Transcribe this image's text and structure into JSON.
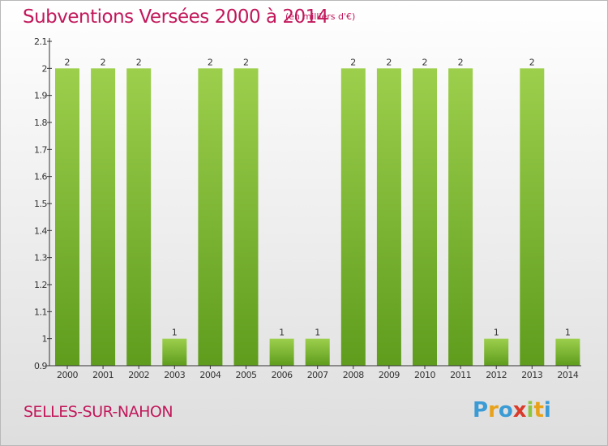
{
  "title": "Subventions Versées 2000 à 2014",
  "unit_note": "(en milliers d'€)",
  "commune": "SELLES-SUR-NAHON",
  "logo": {
    "text": "Proxiti",
    "letters": [
      {
        "ch": "P",
        "color": "#3a9bd5"
      },
      {
        "ch": "r",
        "color": "#e8a21a"
      },
      {
        "ch": "o",
        "color": "#3a9bd5"
      },
      {
        "ch": "x",
        "color": "#d93a2a"
      },
      {
        "ch": "i",
        "color": "#8cc63f"
      },
      {
        "ch": "t",
        "color": "#e8a21a"
      },
      {
        "ch": "i",
        "color": "#3a9bd5"
      }
    ]
  },
  "colors": {
    "accent": "#c2185b",
    "bar_top": "#9ccf4c",
    "bar_bottom": "#5f9c1d",
    "axis": "#333333"
  },
  "chart_data": {
    "type": "bar",
    "categories": [
      "2000",
      "2001",
      "2002",
      "2003",
      "2004",
      "2005",
      "2006",
      "2007",
      "2008",
      "2009",
      "2010",
      "2011",
      "2012",
      "2013",
      "2014"
    ],
    "values": [
      2,
      2,
      2,
      1,
      2,
      2,
      1,
      1,
      2,
      2,
      2,
      2,
      1,
      2,
      1
    ],
    "data_labels": [
      "2",
      "2",
      "2",
      "1",
      "2",
      "2",
      "1",
      "1",
      "2",
      "2",
      "2",
      "2",
      "1",
      "2",
      "1"
    ],
    "ylim": [
      0.9,
      2.1
    ],
    "yticks": [
      0.9,
      1,
      1.1,
      1.2,
      1.3,
      1.4,
      1.5,
      1.6,
      1.7,
      1.8,
      1.9,
      2,
      2.1
    ],
    "ytick_labels": [
      "0.9",
      "1",
      "1.1",
      "1.2",
      "1.3",
      "1.4",
      "1.5",
      "1.6",
      "1.7",
      "1.8",
      "1.9",
      "2",
      "2.1"
    ],
    "grid": false,
    "legend": "none"
  }
}
